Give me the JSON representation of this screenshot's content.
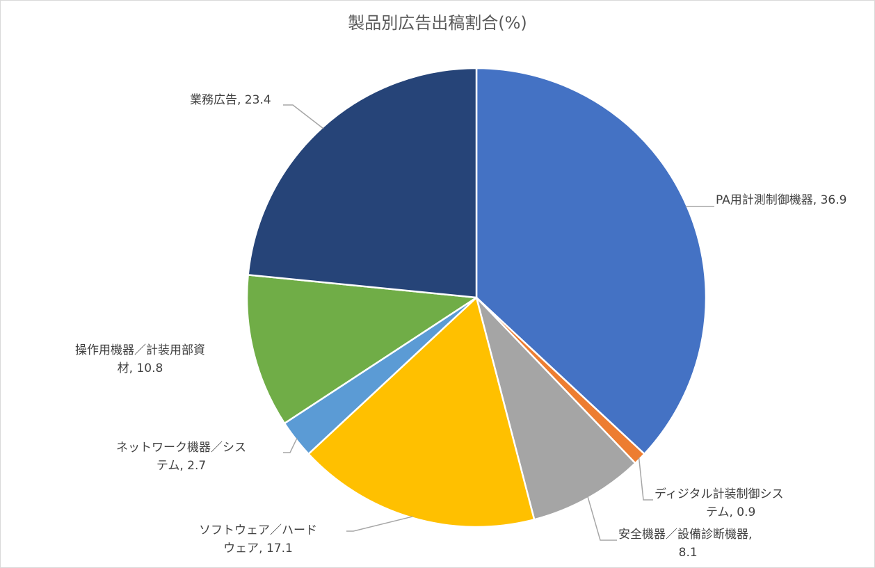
{
  "chart_data": {
    "type": "pie",
    "title": "製品別広告出稿割合(%)",
    "slices": [
      {
        "name": "PA用計測制御機器",
        "value": 36.9,
        "color": "#4472C4",
        "label_lines": [
          "PA用計測制御機器, 36.9"
        ]
      },
      {
        "name": "ディジタル計装制御システム",
        "value": 0.9,
        "color": "#ED7D31",
        "label_lines": [
          "ディジタル計装制御シス",
          "テム, 0.9"
        ]
      },
      {
        "name": "安全機器／設備診断機器",
        "value": 8.1,
        "color": "#A5A5A5",
        "label_lines": [
          "安全機器／設備診断機器,",
          "8.1"
        ]
      },
      {
        "name": "ソフトウェア／ハードウェア",
        "value": 17.1,
        "color": "#FFC000",
        "label_lines": [
          "ソフトウェア／ハード",
          "ウェア, 17.1"
        ]
      },
      {
        "name": "ネットワーク機器／システム",
        "value": 2.7,
        "color": "#5B9BD5",
        "label_lines": [
          "ネットワーク機器／シス",
          "テム, 2.7"
        ]
      },
      {
        "name": "操作用機器／計装用部資材",
        "value": 10.8,
        "color": "#70AD47",
        "label_lines": [
          "操作用機器／計装用部資",
          "材, 10.8"
        ]
      },
      {
        "name": "業務広告",
        "value": 23.4,
        "color": "#264478",
        "label_lines": [
          "業務広告, 23.4"
        ]
      }
    ],
    "start_angle_deg": 0,
    "direction": "clockwise",
    "legend": "none",
    "data_labels": "outside-with-leader-lines"
  }
}
